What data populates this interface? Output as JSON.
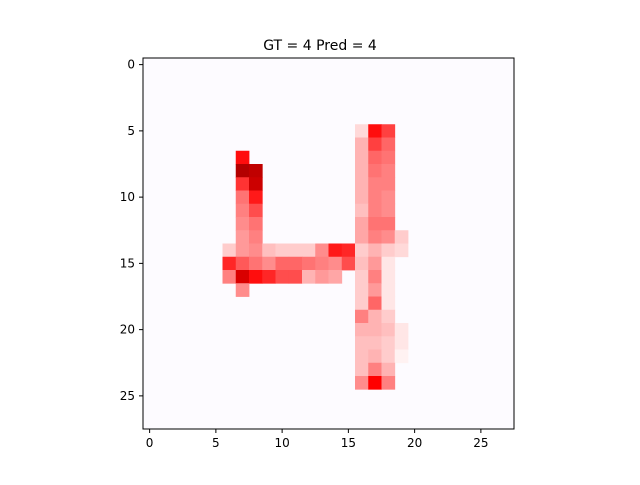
{
  "chart_data": {
    "type": "heatmap",
    "title": "GT = 4 Pred = 4",
    "xlabel": "",
    "ylabel": "",
    "xlim": [
      -0.5,
      27.5
    ],
    "ylim": [
      27.5,
      -0.5
    ],
    "grid_size": [
      28,
      28
    ],
    "colormap": "seismic (positive half: white to red to dark red)",
    "background_color": "#fdfbff",
    "x_ticks": [
      0,
      5,
      10,
      15,
      20,
      25
    ],
    "y_ticks": [
      0,
      5,
      10,
      15,
      20,
      25
    ],
    "x_tick_labels": [
      "0",
      "5",
      "10",
      "15",
      "20",
      "25"
    ],
    "y_tick_labels": [
      "0",
      "5",
      "10",
      "15",
      "20",
      "25"
    ],
    "value_range": [
      0,
      1
    ],
    "cells": [
      [
        16,
        5,
        0.15
      ],
      [
        17,
        5,
        0.95
      ],
      [
        18,
        5,
        0.75
      ],
      [
        16,
        6,
        0.3
      ],
      [
        17,
        6,
        0.75
      ],
      [
        18,
        6,
        0.6
      ],
      [
        7,
        7,
        0.95
      ],
      [
        16,
        7,
        0.3
      ],
      [
        17,
        7,
        0.6
      ],
      [
        18,
        7,
        0.55
      ],
      [
        7,
        8,
        1.3
      ],
      [
        8,
        8,
        1.25
      ],
      [
        16,
        8,
        0.3
      ],
      [
        17,
        8,
        0.55
      ],
      [
        18,
        8,
        0.5
      ],
      [
        7,
        9,
        0.8
      ],
      [
        8,
        9,
        1.2
      ],
      [
        16,
        9,
        0.3
      ],
      [
        17,
        9,
        0.5
      ],
      [
        18,
        9,
        0.5
      ],
      [
        7,
        10,
        0.55
      ],
      [
        8,
        10,
        0.9
      ],
      [
        16,
        10,
        0.3
      ],
      [
        17,
        10,
        0.5
      ],
      [
        18,
        10,
        0.45
      ],
      [
        7,
        11,
        0.5
      ],
      [
        8,
        11,
        0.7
      ],
      [
        16,
        11,
        0.25
      ],
      [
        17,
        11,
        0.5
      ],
      [
        18,
        11,
        0.45
      ],
      [
        7,
        12,
        0.45
      ],
      [
        8,
        12,
        0.55
      ],
      [
        16,
        12,
        0.35
      ],
      [
        17,
        12,
        0.55
      ],
      [
        18,
        12,
        0.55
      ],
      [
        7,
        13,
        0.4
      ],
      [
        8,
        13,
        0.5
      ],
      [
        16,
        13,
        0.35
      ],
      [
        17,
        13,
        0.5
      ],
      [
        18,
        13,
        0.45
      ],
      [
        19,
        13,
        0.2
      ],
      [
        6,
        14,
        0.2
      ],
      [
        7,
        14,
        0.4
      ],
      [
        8,
        14,
        0.45
      ],
      [
        9,
        14,
        0.25
      ],
      [
        10,
        14,
        0.2
      ],
      [
        11,
        14,
        0.2
      ],
      [
        12,
        14,
        0.2
      ],
      [
        13,
        14,
        0.45
      ],
      [
        14,
        14,
        0.9
      ],
      [
        15,
        14,
        0.85
      ],
      [
        16,
        14,
        0.2
      ],
      [
        17,
        14,
        0.3
      ],
      [
        18,
        14,
        0.2
      ],
      [
        19,
        14,
        0.15
      ],
      [
        6,
        15,
        0.85
      ],
      [
        7,
        15,
        0.65
      ],
      [
        8,
        15,
        0.55
      ],
      [
        9,
        15,
        0.45
      ],
      [
        10,
        15,
        0.6
      ],
      [
        11,
        15,
        0.6
      ],
      [
        12,
        15,
        0.55
      ],
      [
        13,
        15,
        0.5
      ],
      [
        14,
        15,
        0.45
      ],
      [
        15,
        15,
        0.7
      ],
      [
        16,
        15,
        0.25
      ],
      [
        17,
        15,
        0.4
      ],
      [
        18,
        15,
        0.1
      ],
      [
        6,
        16,
        0.5
      ],
      [
        7,
        16,
        1.15
      ],
      [
        8,
        16,
        0.95
      ],
      [
        9,
        16,
        0.85
      ],
      [
        10,
        16,
        0.7
      ],
      [
        11,
        16,
        0.7
      ],
      [
        12,
        16,
        0.3
      ],
      [
        13,
        16,
        0.4
      ],
      [
        14,
        16,
        0.35
      ],
      [
        16,
        16,
        0.2
      ],
      [
        17,
        16,
        0.5
      ],
      [
        18,
        16,
        0.1
      ],
      [
        7,
        17,
        0.45
      ],
      [
        16,
        17,
        0.2
      ],
      [
        17,
        17,
        0.4
      ],
      [
        18,
        17,
        0.1
      ],
      [
        16,
        18,
        0.2
      ],
      [
        17,
        18,
        0.6
      ],
      [
        18,
        18,
        0.1
      ],
      [
        16,
        19,
        0.5
      ],
      [
        17,
        19,
        0.3
      ],
      [
        18,
        19,
        0.2
      ],
      [
        16,
        20,
        0.3
      ],
      [
        17,
        20,
        0.3
      ],
      [
        18,
        20,
        0.25
      ],
      [
        19,
        20,
        0.1
      ],
      [
        16,
        21,
        0.25
      ],
      [
        17,
        21,
        0.25
      ],
      [
        18,
        21,
        0.2
      ],
      [
        19,
        21,
        0.1
      ],
      [
        16,
        22,
        0.25
      ],
      [
        17,
        22,
        0.3
      ],
      [
        18,
        22,
        0.2
      ],
      [
        19,
        22,
        0.05
      ],
      [
        16,
        23,
        0.25
      ],
      [
        17,
        23,
        0.5
      ],
      [
        18,
        23,
        0.3
      ],
      [
        16,
        24,
        0.45
      ],
      [
        17,
        24,
        1.0
      ],
      [
        18,
        24,
        0.5
      ]
    ]
  }
}
